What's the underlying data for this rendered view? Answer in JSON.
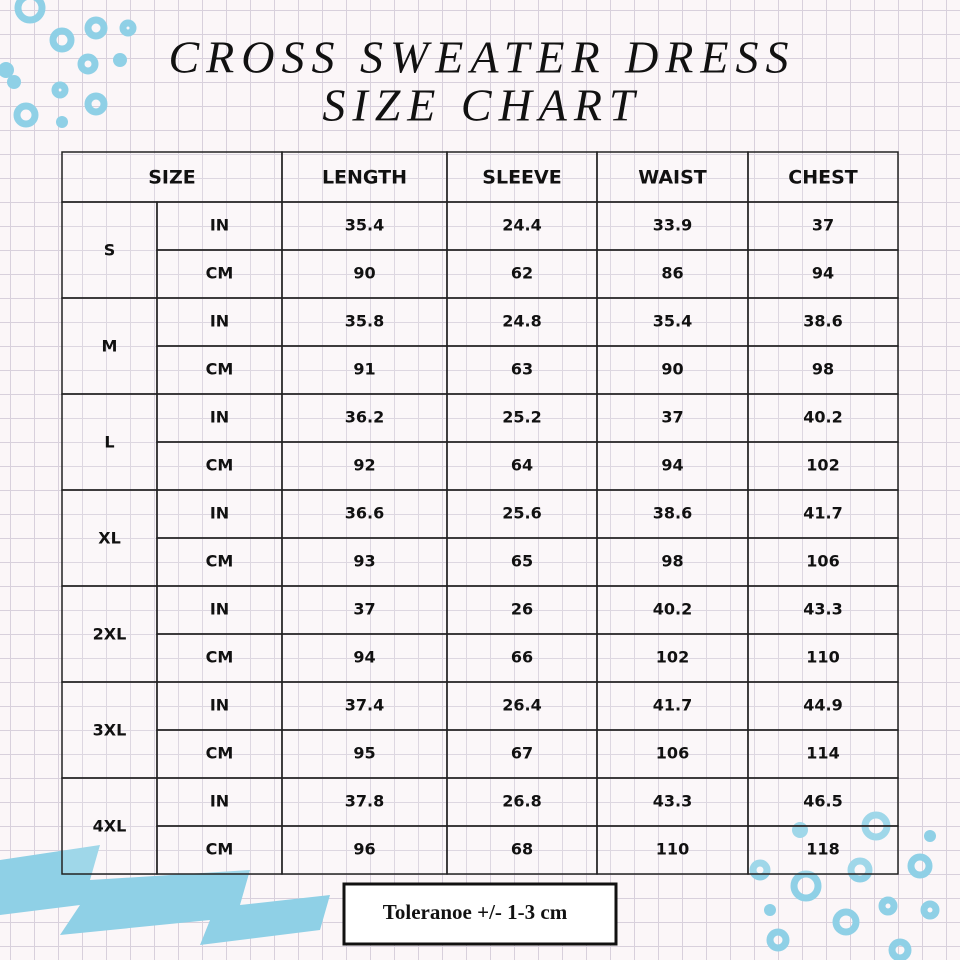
{
  "header": {
    "title_lines": [
      "CROSS SWEATER DRESS",
      "SIZE CHART"
    ]
  },
  "table": {
    "columns": [
      "SIZE",
      "LENGTH",
      "SLEEVE",
      "WAIST",
      "CHEST"
    ],
    "groups": [
      {
        "size": "S",
        "rows": [
          {
            "unit": "IN",
            "values": [
              35.4,
              24.4,
              33.9,
              37
            ]
          },
          {
            "unit": "CM",
            "values": [
              90,
              62,
              86,
              94
            ]
          }
        ]
      },
      {
        "size": "M",
        "rows": [
          {
            "unit": "IN",
            "values": [
              35.8,
              24.8,
              35.4,
              38.6
            ]
          },
          {
            "unit": "CM",
            "values": [
              91,
              63,
              90,
              98
            ]
          }
        ]
      },
      {
        "size": "L",
        "rows": [
          {
            "unit": "IN",
            "values": [
              36.2,
              25.2,
              37,
              40.2
            ]
          },
          {
            "unit": "CM",
            "values": [
              92,
              64,
              94,
              102
            ]
          }
        ]
      },
      {
        "size": "XL",
        "rows": [
          {
            "unit": "IN",
            "values": [
              36.6,
              25.6,
              38.6,
              41.7
            ]
          },
          {
            "unit": "CM",
            "values": [
              93,
              65,
              98,
              106
            ]
          }
        ]
      },
      {
        "size": "2XL",
        "rows": [
          {
            "unit": "IN",
            "values": [
              37,
              26,
              40.2,
              43.3
            ]
          },
          {
            "unit": "CM",
            "values": [
              94,
              66,
              102,
              110
            ]
          }
        ]
      },
      {
        "size": "3XL",
        "rows": [
          {
            "unit": "IN",
            "values": [
              37.4,
              26.4,
              41.7,
              44.9
            ]
          },
          {
            "unit": "CM",
            "values": [
              95,
              67,
              106,
              114
            ]
          }
        ]
      },
      {
        "size": "4XL",
        "rows": [
          {
            "unit": "IN",
            "values": [
              37.8,
              26.8,
              43.3,
              46.5
            ]
          },
          {
            "unit": "CM",
            "values": [
              96,
              68,
              110,
              118
            ]
          }
        ]
      }
    ]
  },
  "footer": {
    "tolerance": "Toleranoe +/- 1-3 cm"
  }
}
